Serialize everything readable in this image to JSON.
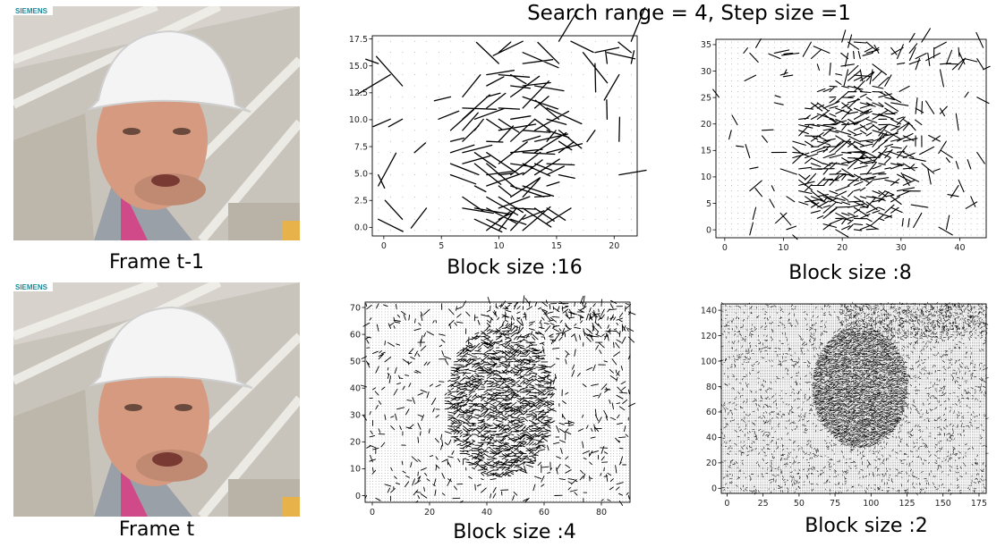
{
  "title": "Search range = 4, Step size =1",
  "frames": [
    {
      "caption": "Frame t-1",
      "logo": "SIEMENS"
    },
    {
      "caption": "Frame t",
      "logo": "SIEMENS"
    }
  ],
  "colors": {
    "helmet": "#f4f4f4",
    "skin": "#d59a80",
    "collar": "#d04a8a",
    "background": "#d7d3cc",
    "vectors": "#000000"
  },
  "chart_data": [
    {
      "type": "quiver",
      "caption": "Block size :16",
      "xticks": [
        0,
        5,
        10,
        15,
        20
      ],
      "yticks": [
        "0.0",
        "2.5",
        "5.0",
        "7.5",
        "10.0",
        "12.5",
        "15.0",
        "17.5"
      ],
      "xlim": [
        -1,
        22
      ],
      "ylim": [
        -0.8,
        17.8
      ],
      "grid": [
        22,
        18
      ]
    },
    {
      "type": "quiver",
      "caption": "Block size :8",
      "xticks": [
        0,
        10,
        20,
        30,
        40
      ],
      "yticks": [
        0,
        5,
        10,
        15,
        20,
        25,
        30,
        35
      ],
      "xlim": [
        -1.5,
        44.5
      ],
      "ylim": [
        -1.5,
        36
      ],
      "grid": [
        44,
        36
      ]
    },
    {
      "type": "quiver",
      "caption": "Block size :4",
      "xticks": [
        0,
        20,
        40,
        60,
        80
      ],
      "yticks": [
        0,
        10,
        20,
        30,
        40,
        50,
        60,
        70
      ],
      "xlim": [
        -2.5,
        90
      ],
      "ylim": [
        -2.5,
        72
      ],
      "grid": [
        88,
        72
      ]
    },
    {
      "type": "quiver",
      "caption": "Block size :2",
      "xticks": [
        0,
        25,
        50,
        75,
        100,
        125,
        150,
        175
      ],
      "yticks": [
        0,
        20,
        40,
        60,
        80,
        100,
        120,
        140
      ],
      "xlim": [
        -4,
        180
      ],
      "ylim": [
        -4,
        145
      ],
      "grid": [
        176,
        144
      ]
    }
  ]
}
